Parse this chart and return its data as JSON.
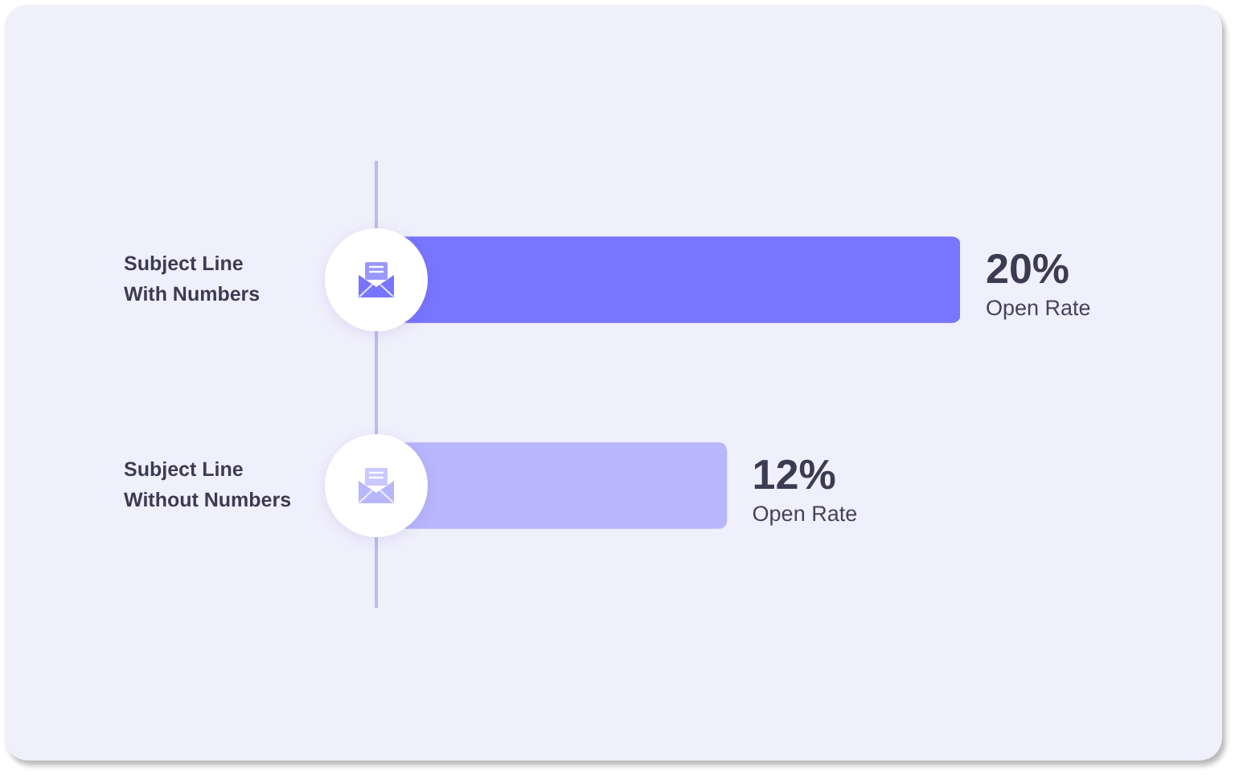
{
  "chart_data": {
    "type": "bar",
    "orientation": "horizontal",
    "categories": [
      "Subject Line With Numbers",
      "Subject Line Without Numbers"
    ],
    "values": [
      20,
      12
    ],
    "colors": [
      "#7875fe",
      "#b8b6fd"
    ],
    "tick_labels": "y",
    "value_labels": [
      "20%",
      "12%"
    ],
    "annotations": [
      {
        "text": "Open Rate",
        "x": 20,
        "y": "Subject Line With Numbers"
      },
      {
        "text": "Open Rate",
        "x": 12,
        "y": "Subject Line Without Numbers"
      }
    ]
  }
}
